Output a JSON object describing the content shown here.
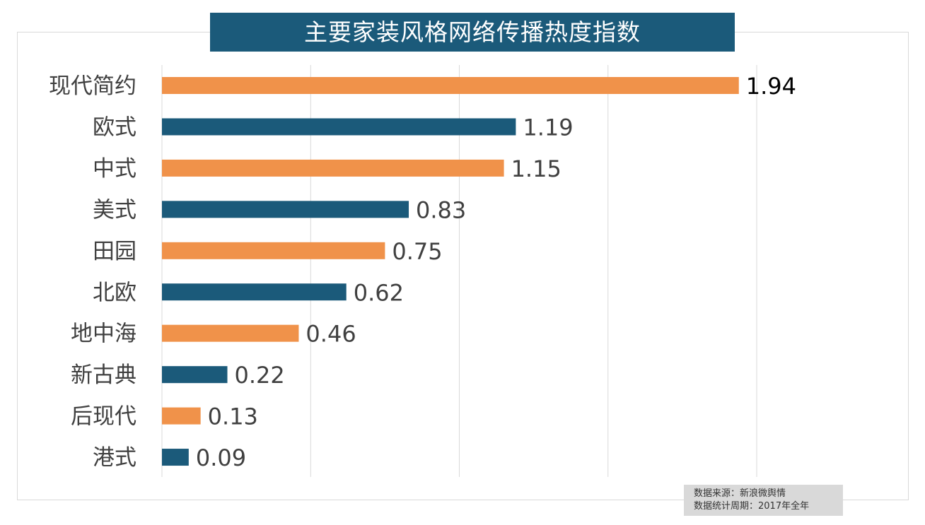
{
  "chart_data": {
    "type": "bar",
    "orientation": "horizontal",
    "title": "主要家装风格网络传播热度指数",
    "categories": [
      "现代简约",
      "欧式",
      "中式",
      "美式",
      "田园",
      "北欧",
      "地中海",
      "新古典",
      "后现代",
      "港式"
    ],
    "values": [
      1.94,
      1.19,
      1.15,
      0.83,
      0.75,
      0.62,
      0.46,
      0.22,
      0.13,
      0.09
    ],
    "xlim": [
      0,
      2.0
    ],
    "grid_step": 0.5,
    "grid": true,
    "colors": [
      "#f0924a",
      "#1b5a7a"
    ],
    "title_bg": "#1b5a7a"
  },
  "footer": {
    "source": "数据来源：新浪微舆情",
    "period": "数据统计周期：2017年全年"
  }
}
